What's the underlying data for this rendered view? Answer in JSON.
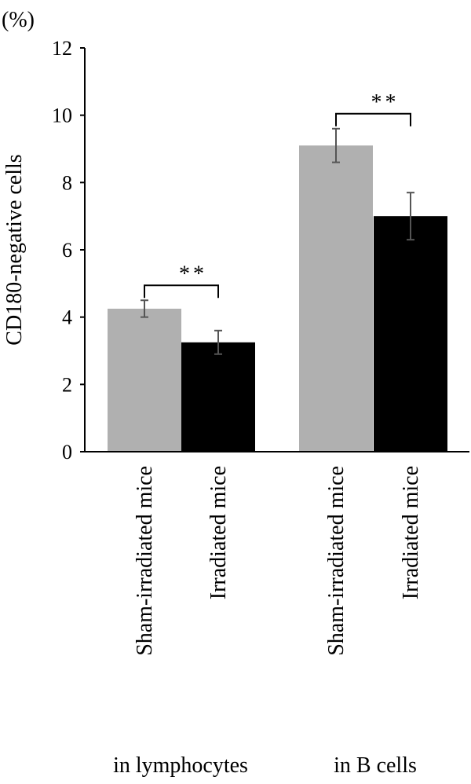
{
  "chart_data": {
    "type": "bar",
    "unit_label": "(%)",
    "ylabel": "CD180-negative cells",
    "ylim": [
      0,
      12
    ],
    "yticks": [
      "0",
      "2",
      "4",
      "6",
      "8",
      "10",
      "12"
    ],
    "grid": false,
    "groups": [
      {
        "label": "in lymphocytes",
        "bars": [
          {
            "category": "Sham-irradiated mice",
            "value": 4.25,
            "error": 0.25,
            "color": "#b0b0b0"
          },
          {
            "category": "Irradiated mice",
            "value": 3.25,
            "error": 0.35,
            "color": "#000000"
          }
        ],
        "significance": "**"
      },
      {
        "label": "in B cells",
        "bars": [
          {
            "category": "Sham-irradiated mice",
            "value": 9.1,
            "error": 0.5,
            "color": "#b0b0b0"
          },
          {
            "category": "Irradiated mice",
            "value": 7.0,
            "error": 0.7,
            "color": "#000000"
          }
        ],
        "significance": "**"
      }
    ]
  }
}
